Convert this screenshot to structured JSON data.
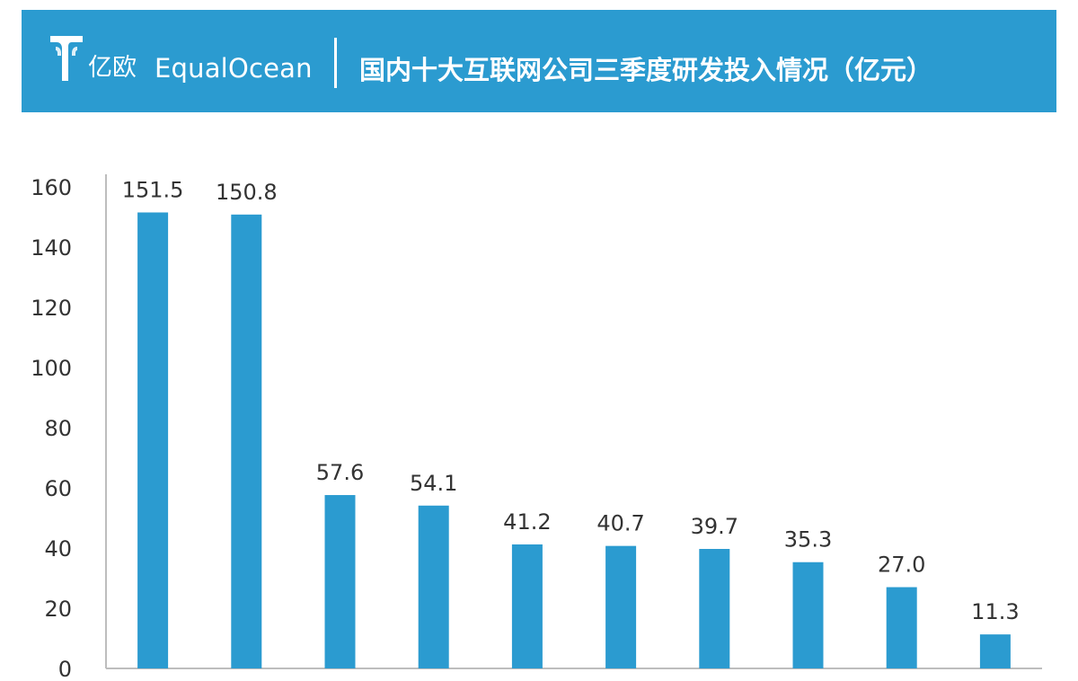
{
  "header": {
    "logo_cn": "亿欧",
    "logo_en": "EqualOcean",
    "title": "国内十大互联网公司三季度研发投入情况（亿元）",
    "banner_color": "#2b9bd0"
  },
  "chart_data": {
    "type": "bar",
    "title": "国内十大互联网公司三季度研发投入情况（亿元）",
    "categories": [
      "",
      "",
      "",
      "",
      "",
      "",
      "",
      "",
      "",
      ""
    ],
    "values": [
      151.5,
      150.8,
      57.6,
      54.1,
      41.2,
      40.7,
      39.7,
      35.3,
      27.0,
      11.3
    ],
    "data_labels": [
      "151.5",
      "150.8",
      "57.6",
      "54.1",
      "41.2",
      "40.7",
      "39.7",
      "35.3",
      "27.0",
      "11.3"
    ],
    "y_ticks": [
      0,
      20,
      40,
      60,
      80,
      100,
      120,
      140,
      160
    ],
    "y_tick_labels": [
      "0",
      "20",
      "40",
      "60",
      "80",
      "100",
      "120",
      "140",
      "160"
    ],
    "ylim": [
      0,
      160
    ],
    "xlabel": "",
    "ylabel": "",
    "grid": false,
    "bar_color": "#2b9bd0",
    "axis_color": "#bdbdbd",
    "label_color": "#333333"
  }
}
